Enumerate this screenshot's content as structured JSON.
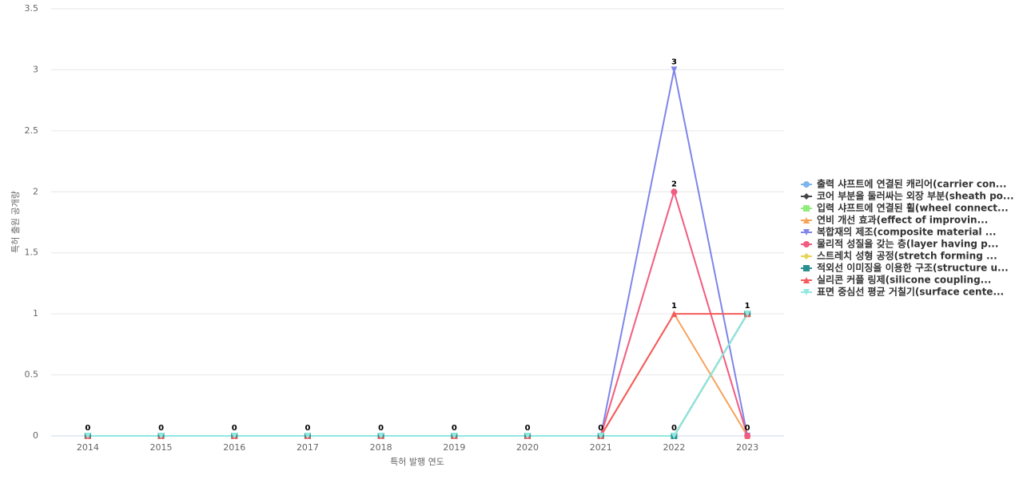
{
  "chart_data": {
    "type": "line",
    "x_label": "특허 발행 연도",
    "y_label": "특허 출원 공개량",
    "categories": [
      "2014",
      "2015",
      "2016",
      "2017",
      "2018",
      "2019",
      "2020",
      "2021",
      "2022",
      "2023"
    ],
    "ylim": [
      0,
      3.5
    ],
    "yticks": [
      0,
      0.5,
      1,
      1.5,
      2,
      2.5,
      3,
      3.5
    ],
    "grid": true,
    "legend": "right",
    "series": [
      {
        "name": "출력 샤프트에 연결된 캐리어(carrier con...",
        "color": "#7cb5ec",
        "values": [
          0,
          0,
          0,
          0,
          0,
          0,
          0,
          0,
          0,
          1
        ]
      },
      {
        "name": "코어 부분을 둘러싸는 외장 부분(sheath po...",
        "color": "#434348",
        "values": [
          0,
          0,
          0,
          0,
          0,
          0,
          0,
          0,
          0,
          1
        ]
      },
      {
        "name": "입력 샤프트에 연결된 휠(wheel connect...",
        "color": "#90ed7d",
        "values": [
          0,
          0,
          0,
          0,
          0,
          0,
          0,
          0,
          0,
          1
        ]
      },
      {
        "name": "연비 개선 효과(effect of improvin...",
        "color": "#f7a35c",
        "values": [
          0,
          0,
          0,
          0,
          0,
          0,
          0,
          0,
          1,
          0
        ]
      },
      {
        "name": "복합재의 제조(composite material ...",
        "color": "#8085e9",
        "values": [
          0,
          0,
          0,
          0,
          0,
          0,
          0,
          0,
          3,
          0
        ]
      },
      {
        "name": "물리적 성질을 갖는 층(layer having p...",
        "color": "#f15c80",
        "values": [
          0,
          0,
          0,
          0,
          0,
          0,
          0,
          0,
          2,
          0
        ]
      },
      {
        "name": "스트레치 성형 공정(stretch forming ...",
        "color": "#e4d354",
        "values": [
          0,
          0,
          0,
          0,
          0,
          0,
          0,
          0,
          0,
          1
        ]
      },
      {
        "name": "적외선 이미징을 이용한 구조(structure u...",
        "color": "#2b908f",
        "values": [
          0,
          0,
          0,
          0,
          0,
          0,
          0,
          0,
          0,
          1
        ]
      },
      {
        "name": "실리콘 커플 링제(silicone coupling...",
        "color": "#f45b5b",
        "values": [
          0,
          0,
          0,
          0,
          0,
          0,
          0,
          0,
          1,
          1
        ]
      },
      {
        "name": "표면 중심선 평균 거칠기(surface cente...",
        "color": "#91e8e1",
        "values": [
          0,
          0,
          0,
          0,
          0,
          0,
          0,
          0,
          0,
          1
        ]
      }
    ]
  }
}
